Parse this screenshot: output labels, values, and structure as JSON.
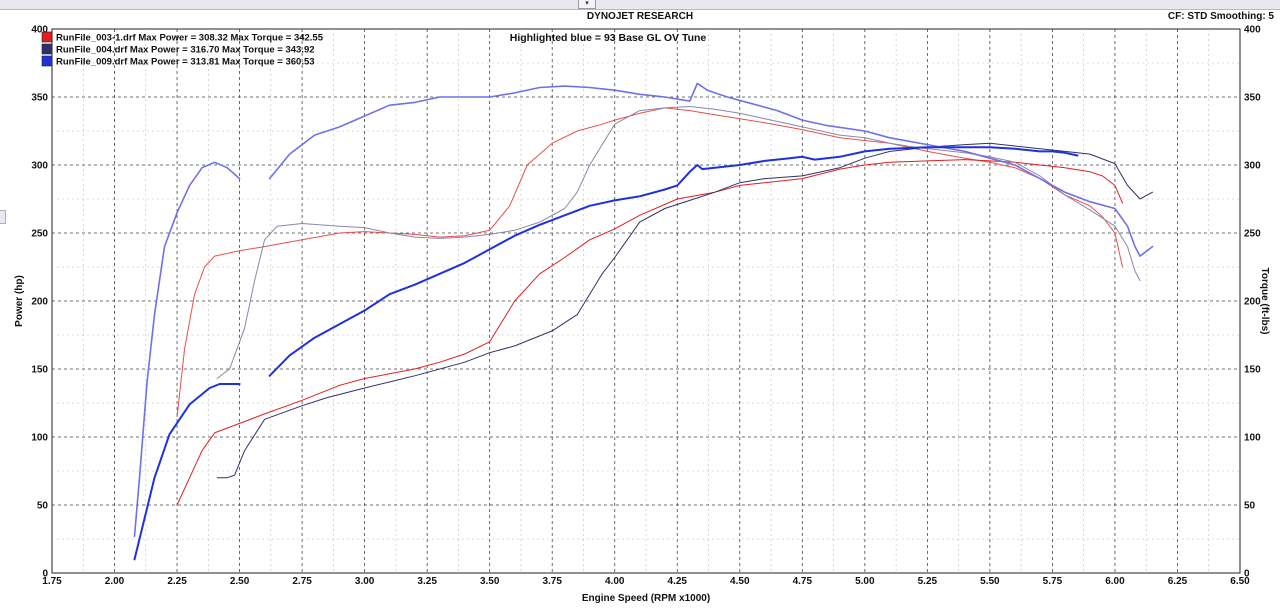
{
  "header": {
    "title": "DYNOJET RESEARCH",
    "cf_info": "CF: STD  Smoothing: 5",
    "collapse_glyph": "▾"
  },
  "chart_data": {
    "type": "line",
    "title": "DYNOJET RESEARCH",
    "annotation": "Highlighted blue = 93 Base GL OV Tune",
    "xlabel": "Engine Speed (RPM x1000)",
    "ylabel_left": "Power (hp)",
    "ylabel_right": "Torque (ft-lbs)",
    "xlim": [
      1.75,
      6.5
    ],
    "ylim": [
      0,
      400
    ],
    "x_ticks": [
      "1.75",
      "2.00",
      "2.25",
      "2.50",
      "2.75",
      "3.00",
      "3.25",
      "3.50",
      "3.75",
      "4.00",
      "4.25",
      "4.50",
      "4.75",
      "5.00",
      "5.25",
      "5.50",
      "5.75",
      "6.00",
      "6.25",
      "6.50"
    ],
    "x_tick_values": [
      1.75,
      2.0,
      2.25,
      2.5,
      2.75,
      3.0,
      3.25,
      3.5,
      3.75,
      4.0,
      4.25,
      4.5,
      4.75,
      5.0,
      5.25,
      5.5,
      5.75,
      6.0,
      6.25,
      6.5
    ],
    "y_ticks": [
      "0",
      "50",
      "100",
      "150",
      "200",
      "250",
      "300",
      "350",
      "400"
    ],
    "y_tick_values": [
      0,
      50,
      100,
      150,
      200,
      250,
      300,
      350,
      400
    ],
    "y_minor_step": 25,
    "x_minor_step": 0.125,
    "grid": true,
    "legend_position": "top-left",
    "series": [
      {
        "name": "RunFile_003-1.drf Max Power = 308.32 Max Torque = 342.55",
        "color": "#e02020",
        "width": 1,
        "power": [
          [
            2.25,
            50
          ],
          [
            2.3,
            70
          ],
          [
            2.35,
            90
          ],
          [
            2.4,
            103
          ],
          [
            2.5,
            110
          ],
          [
            2.6,
            117
          ],
          [
            2.75,
            127
          ],
          [
            2.9,
            138
          ],
          [
            3.0,
            143
          ],
          [
            3.2,
            150
          ],
          [
            3.3,
            155
          ],
          [
            3.4,
            161
          ],
          [
            3.5,
            170
          ],
          [
            3.6,
            200
          ],
          [
            3.7,
            220
          ],
          [
            3.8,
            232
          ],
          [
            3.9,
            245
          ],
          [
            4.0,
            253
          ],
          [
            4.1,
            263
          ],
          [
            4.25,
            275
          ],
          [
            4.4,
            280
          ],
          [
            4.5,
            285
          ],
          [
            4.6,
            287
          ],
          [
            4.75,
            290
          ],
          [
            4.9,
            297
          ],
          [
            5.0,
            300
          ],
          [
            5.1,
            302
          ],
          [
            5.25,
            303
          ],
          [
            5.4,
            304
          ],
          [
            5.5,
            303
          ],
          [
            5.6,
            302
          ],
          [
            5.7,
            300
          ],
          [
            5.8,
            298
          ],
          [
            5.9,
            295
          ],
          [
            5.95,
            292
          ],
          [
            6.0,
            285
          ],
          [
            6.03,
            272
          ]
        ],
        "torque": [
          [
            2.25,
            115
          ],
          [
            2.28,
            165
          ],
          [
            2.32,
            205
          ],
          [
            2.36,
            225
          ],
          [
            2.4,
            233
          ],
          [
            2.5,
            237
          ],
          [
            2.6,
            240
          ],
          [
            2.75,
            245
          ],
          [
            2.9,
            250
          ],
          [
            3.0,
            251
          ],
          [
            3.2,
            249
          ],
          [
            3.3,
            247
          ],
          [
            3.4,
            248
          ],
          [
            3.5,
            252
          ],
          [
            3.58,
            270
          ],
          [
            3.65,
            300
          ],
          [
            3.75,
            316
          ],
          [
            3.85,
            325
          ],
          [
            3.95,
            330
          ],
          [
            4.0,
            333
          ],
          [
            4.1,
            338
          ],
          [
            4.2,
            342
          ],
          [
            4.3,
            340
          ],
          [
            4.4,
            337
          ],
          [
            4.5,
            334
          ],
          [
            4.6,
            331
          ],
          [
            4.75,
            326
          ],
          [
            4.9,
            320
          ],
          [
            5.0,
            318
          ],
          [
            5.1,
            316
          ],
          [
            5.25,
            310
          ],
          [
            5.4,
            305
          ],
          [
            5.5,
            302
          ],
          [
            5.6,
            298
          ],
          [
            5.7,
            290
          ],
          [
            5.8,
            278
          ],
          [
            5.9,
            270
          ],
          [
            5.95,
            262
          ],
          [
            6.0,
            250
          ],
          [
            6.03,
            225
          ]
        ]
      },
      {
        "name": "RunFile_004.drf Max Power = 316.70 Max Torque = 343.92",
        "color": "#303070",
        "width": 1,
        "power": [
          [
            2.41,
            70
          ],
          [
            2.45,
            70
          ],
          [
            2.48,
            72
          ],
          [
            2.52,
            90
          ],
          [
            2.6,
            113
          ],
          [
            2.75,
            123
          ],
          [
            2.85,
            129
          ],
          [
            3.0,
            136
          ],
          [
            3.2,
            145
          ],
          [
            3.4,
            155
          ],
          [
            3.5,
            162
          ],
          [
            3.6,
            167
          ],
          [
            3.75,
            178
          ],
          [
            3.85,
            190
          ],
          [
            3.9,
            205
          ],
          [
            3.95,
            220
          ],
          [
            4.0,
            232
          ],
          [
            4.05,
            245
          ],
          [
            4.1,
            258
          ],
          [
            4.2,
            268
          ],
          [
            4.3,
            274
          ],
          [
            4.4,
            280
          ],
          [
            4.5,
            287
          ],
          [
            4.6,
            290
          ],
          [
            4.75,
            292
          ],
          [
            4.9,
            298
          ],
          [
            5.0,
            305
          ],
          [
            5.1,
            310
          ],
          [
            5.25,
            313
          ],
          [
            5.4,
            315
          ],
          [
            5.5,
            316
          ],
          [
            5.6,
            314
          ],
          [
            5.7,
            312
          ],
          [
            5.8,
            310
          ],
          [
            5.9,
            308
          ],
          [
            6.0,
            301
          ],
          [
            6.05,
            285
          ],
          [
            6.1,
            275
          ],
          [
            6.15,
            280
          ]
        ],
        "torque": [
          [
            2.41,
            143
          ],
          [
            2.46,
            150
          ],
          [
            2.48,
            160
          ],
          [
            2.52,
            180
          ],
          [
            2.56,
            215
          ],
          [
            2.6,
            245
          ],
          [
            2.65,
            255
          ],
          [
            2.75,
            257
          ],
          [
            2.9,
            255
          ],
          [
            3.0,
            254
          ],
          [
            3.1,
            250
          ],
          [
            3.2,
            247
          ],
          [
            3.3,
            246
          ],
          [
            3.4,
            247
          ],
          [
            3.5,
            249
          ],
          [
            3.6,
            252
          ],
          [
            3.7,
            258
          ],
          [
            3.8,
            268
          ],
          [
            3.85,
            280
          ],
          [
            3.9,
            300
          ],
          [
            3.95,
            315
          ],
          [
            4.0,
            330
          ],
          [
            4.1,
            340
          ],
          [
            4.2,
            342
          ],
          [
            4.3,
            343
          ],
          [
            4.4,
            341
          ],
          [
            4.5,
            338
          ],
          [
            4.6,
            334
          ],
          [
            4.75,
            328
          ],
          [
            4.9,
            322
          ],
          [
            5.0,
            320
          ],
          [
            5.1,
            316
          ],
          [
            5.2,
            313
          ],
          [
            5.3,
            311
          ],
          [
            5.4,
            309
          ],
          [
            5.5,
            306
          ],
          [
            5.6,
            302
          ],
          [
            5.7,
            292
          ],
          [
            5.8,
            278
          ],
          [
            5.9,
            267
          ],
          [
            6.0,
            255
          ],
          [
            6.05,
            240
          ],
          [
            6.08,
            222
          ],
          [
            6.1,
            215
          ]
        ]
      },
      {
        "name": "RunFile_009.drf Max Power = 313.81 Max Torque = 360.53",
        "color": "#2030dd",
        "width": 2,
        "power": [
          [
            2.08,
            10
          ],
          [
            2.12,
            40
          ],
          [
            2.16,
            70
          ],
          [
            2.22,
            102
          ],
          [
            2.3,
            124
          ],
          [
            2.38,
            136
          ],
          [
            2.42,
            139
          ],
          [
            2.5,
            139
          ],
          null,
          [
            2.62,
            145
          ],
          [
            2.7,
            160
          ],
          [
            2.8,
            173
          ],
          [
            2.9,
            183
          ],
          [
            3.0,
            193
          ],
          [
            3.1,
            205
          ],
          [
            3.2,
            212
          ],
          [
            3.3,
            220
          ],
          [
            3.4,
            228
          ],
          [
            3.5,
            238
          ],
          [
            3.6,
            248
          ],
          [
            3.7,
            256
          ],
          [
            3.8,
            263
          ],
          [
            3.9,
            270
          ],
          [
            4.0,
            274
          ],
          [
            4.1,
            277
          ],
          [
            4.2,
            282
          ],
          [
            4.25,
            285
          ],
          [
            4.3,
            295
          ],
          [
            4.33,
            300
          ],
          [
            4.35,
            297
          ],
          [
            4.4,
            298
          ],
          [
            4.5,
            300
          ],
          [
            4.6,
            303
          ],
          [
            4.7,
            305
          ],
          [
            4.75,
            306
          ],
          [
            4.8,
            304
          ],
          [
            4.9,
            306
          ],
          [
            5.0,
            310
          ],
          [
            5.1,
            312
          ],
          [
            5.25,
            313
          ],
          [
            5.4,
            313
          ],
          [
            5.5,
            313
          ],
          [
            5.6,
            312
          ],
          [
            5.7,
            310
          ],
          [
            5.75,
            310
          ],
          [
            5.8,
            309
          ],
          [
            5.85,
            307
          ]
        ],
        "torque": [
          [
            2.08,
            27
          ],
          [
            2.1,
            70
          ],
          [
            2.13,
            140
          ],
          [
            2.16,
            190
          ],
          [
            2.2,
            240
          ],
          [
            2.25,
            265
          ],
          [
            2.3,
            285
          ],
          [
            2.35,
            298
          ],
          [
            2.4,
            302
          ],
          [
            2.45,
            298
          ],
          [
            2.5,
            290
          ],
          null,
          [
            2.62,
            290
          ],
          [
            2.7,
            308
          ],
          [
            2.8,
            322
          ],
          [
            2.9,
            328
          ],
          [
            3.0,
            336
          ],
          [
            3.1,
            344
          ],
          [
            3.2,
            346
          ],
          [
            3.3,
            350
          ],
          [
            3.4,
            350
          ],
          [
            3.5,
            350
          ],
          [
            3.6,
            353
          ],
          [
            3.7,
            357
          ],
          [
            3.8,
            358
          ],
          [
            3.9,
            357
          ],
          [
            4.0,
            355
          ],
          [
            4.1,
            352
          ],
          [
            4.2,
            350
          ],
          [
            4.3,
            347
          ],
          [
            4.33,
            360
          ],
          [
            4.37,
            355
          ],
          [
            4.45,
            350
          ],
          [
            4.55,
            345
          ],
          [
            4.65,
            340
          ],
          [
            4.75,
            333
          ],
          [
            4.85,
            329
          ],
          [
            5.0,
            325
          ],
          [
            5.1,
            320
          ],
          [
            5.25,
            315
          ],
          [
            5.4,
            310
          ],
          [
            5.5,
            305
          ],
          [
            5.6,
            300
          ],
          [
            5.7,
            290
          ],
          [
            5.8,
            280
          ],
          [
            5.9,
            273
          ],
          [
            6.0,
            268
          ],
          [
            6.05,
            255
          ],
          [
            6.08,
            240
          ],
          [
            6.1,
            233
          ],
          [
            6.15,
            240
          ]
        ]
      }
    ]
  }
}
